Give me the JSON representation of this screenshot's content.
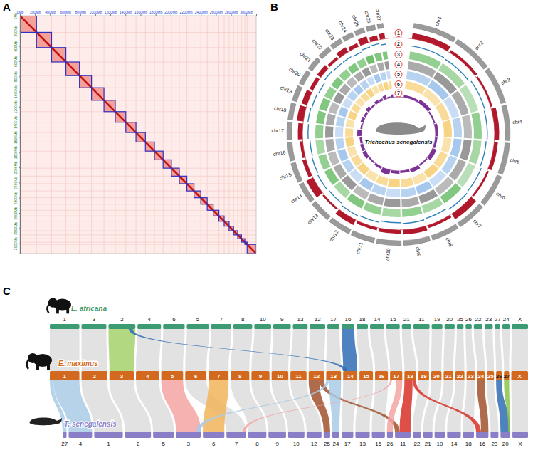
{
  "chart_data": [
    {
      "type": "heatmap",
      "label": "A",
      "color": "#e8362d",
      "xlim": [
        0,
        3135
      ],
      "ylim": [
        0,
        3135
      ],
      "xticks": [
        {
          "value": 0,
          "label": "0Mb"
        },
        {
          "value": 200,
          "label": "200Mb"
        },
        {
          "value": 400,
          "label": "400Mb"
        },
        {
          "value": 600,
          "label": "600Mb"
        },
        {
          "value": 800,
          "label": "800Mb"
        },
        {
          "value": 1000,
          "label": "1000Mb"
        },
        {
          "value": 1200,
          "label": "1200Mb"
        },
        {
          "value": 1400,
          "label": "1400Mb"
        },
        {
          "value": 1600,
          "label": "1600Mb"
        },
        {
          "value": 1800,
          "label": "1800Mb"
        },
        {
          "value": 2000,
          "label": "2000Mb"
        },
        {
          "value": 2200,
          "label": "2200Mb"
        },
        {
          "value": 2400,
          "label": "2400Mb"
        },
        {
          "value": 2600,
          "label": "2600Mb"
        },
        {
          "value": 2800,
          "label": "2800Mb"
        },
        {
          "value": 3000,
          "label": "3000Mb"
        }
      ],
      "yticks": [
        {
          "value": 0,
          "label": "0Mb"
        },
        {
          "value": 200,
          "label": "200Mb"
        },
        {
          "value": 400,
          "label": "400Mb"
        },
        {
          "value": 600,
          "label": "600Mb"
        },
        {
          "value": 800,
          "label": "800Mb"
        },
        {
          "value": 1000,
          "label": "1000Mb"
        },
        {
          "value": 1200,
          "label": "1200Mb"
        },
        {
          "value": 1400,
          "label": "1400Mb"
        },
        {
          "value": 1600,
          "label": "1600Mb"
        },
        {
          "value": 1800,
          "label": "1800Mb"
        },
        {
          "value": 2000,
          "label": "2000Mb"
        },
        {
          "value": 2200,
          "label": "2200Mb"
        },
        {
          "value": 2400,
          "label": "2400Mb"
        },
        {
          "value": 2600,
          "label": "2600Mb"
        },
        {
          "value": 2800,
          "label": "2800Mb"
        },
        {
          "value": 3000,
          "label": "3000Mb"
        }
      ],
      "values": [
        220,
        200,
        190,
        180,
        160,
        165,
        150,
        140,
        135,
        125,
        120,
        115,
        110,
        105,
        100,
        95,
        90,
        85,
        80,
        75,
        70,
        65,
        60,
        55,
        50,
        45,
        30,
        120
      ]
    },
    {
      "type": "circos",
      "label": "B",
      "title": "Trichechus senegalensis",
      "color": "#9a9a9a",
      "categories": [
        "chr1",
        "chr2",
        "chr3",
        "chr4",
        "chr5",
        "chr6",
        "chr7",
        "chr8",
        "chr9",
        "chr10",
        "chr11",
        "chr12",
        "chr13",
        "chr14",
        "chr15",
        "chr16",
        "chr17",
        "chr18",
        "chr19",
        "chr20",
        "chr21",
        "chr22",
        "chr23",
        "chr24",
        "chr25",
        "chr26",
        "chr27"
      ],
      "values": [
        220,
        200,
        190,
        180,
        160,
        165,
        150,
        140,
        135,
        125,
        120,
        115,
        110,
        105,
        100,
        95,
        90,
        85,
        80,
        75,
        70,
        65,
        60,
        55,
        50,
        45,
        30
      ],
      "tracks": [
        {
          "name": "1",
          "type": "bar",
          "color": "#b2182b",
          "ylim": [
            0,
            1
          ],
          "values": [
            0.6,
            0.3,
            0.2,
            0.5,
            0.4,
            0.2,
            0.7,
            0.3,
            0.5,
            0.4,
            0.3,
            0.6,
            0.2,
            0.8,
            0.4,
            0.3,
            0.5,
            0.7,
            0.6,
            0.4,
            0.5,
            0.3,
            0.6,
            0.4,
            0.7,
            0.5,
            0.6
          ]
        },
        {
          "name": "2",
          "type": "line",
          "color": "#2c7fb8",
          "ylim": [
            36,
            46
          ],
          "values": [
            40,
            39,
            41,
            40,
            39,
            41,
            42,
            40,
            41,
            40,
            42,
            43,
            41,
            42,
            41,
            40,
            42,
            43,
            42,
            41,
            43,
            42,
            42,
            41,
            43,
            44,
            42
          ]
        },
        {
          "name": "3",
          "type": "heat",
          "color": "#4daf4a",
          "ylim": [
            0,
            1
          ],
          "values": [
            0.6,
            0.5,
            0.4,
            0.6,
            0.5,
            0.4,
            0.7,
            0.5,
            0.6,
            0.5,
            0.6,
            0.7,
            0.5,
            0.7,
            0.6,
            0.5,
            0.6,
            0.7,
            0.7,
            0.6,
            0.7,
            0.6,
            0.7,
            0.6,
            0.8,
            0.7,
            0.7
          ]
        },
        {
          "name": "4",
          "type": "heat",
          "color": "#555555",
          "ylim": [
            0,
            1
          ],
          "values": [
            0.5,
            0.6,
            0.5,
            0.4,
            0.6,
            0.5,
            0.4,
            0.6,
            0.5,
            0.6,
            0.5,
            0.4,
            0.6,
            0.5,
            0.4,
            0.5,
            0.6,
            0.5,
            0.4,
            0.6,
            0.5,
            0.4,
            0.5,
            0.6,
            0.4,
            0.5,
            0.6
          ]
        },
        {
          "name": "5",
          "type": "heat",
          "color": "#4a90d9",
          "ylim": [
            0,
            1
          ],
          "values": [
            0.4,
            0.5,
            0.3,
            0.4,
            0.5,
            0.4,
            0.3,
            0.5,
            0.4,
            0.3,
            0.4,
            0.5,
            0.3,
            0.4,
            0.5,
            0.4,
            0.3,
            0.4,
            0.5,
            0.3,
            0.4,
            0.5,
            0.4,
            0.3,
            0.5,
            0.4,
            0.3
          ]
        },
        {
          "name": "6",
          "type": "heat",
          "color": "#f2b632",
          "ylim": [
            0,
            1
          ],
          "values": [
            0.5,
            0.4,
            0.5,
            0.6,
            0.4,
            0.5,
            0.6,
            0.4,
            0.5,
            0.6,
            0.5,
            0.4,
            0.6,
            0.5,
            0.4,
            0.6,
            0.5,
            0.4,
            0.6,
            0.5,
            0.4,
            0.5,
            0.6,
            0.4,
            0.5,
            0.6,
            0.5
          ]
        },
        {
          "name": "7",
          "type": "bar",
          "color": "#7b3294",
          "ylim": [
            0,
            1
          ],
          "values": [
            0.3,
            0.5,
            0.2,
            0.4,
            0.3,
            0.6,
            0.2,
            0.5,
            0.3,
            0.4,
            0.7,
            0.3,
            0.2,
            0.5,
            0.4,
            0.3,
            0.6,
            0.2,
            0.4,
            0.3,
            0.5,
            0.2,
            0.4,
            0.3,
            0.5,
            0.2,
            0.4
          ]
        }
      ]
    },
    {
      "type": "synteny",
      "label": "C",
      "color": "#cfcfcf",
      "genomes": [
        {
          "name": "L. africana",
          "color": "#3d9b73",
          "categories": [
            "1",
            "3",
            "2",
            "4",
            "6",
            "5",
            "7",
            "8",
            "10",
            "9",
            "13",
            "12",
            "17",
            "16",
            "18",
            "14",
            "15",
            "21",
            "11",
            "19",
            "20",
            "25",
            "26",
            "22",
            "23",
            "27",
            "24",
            "X"
          ],
          "sizes": [
            220,
            185,
            200,
            175,
            160,
            165,
            150,
            140,
            125,
            130,
            110,
            115,
            90,
            95,
            85,
            105,
            100,
            70,
            120,
            80,
            75,
            50,
            45,
            65,
            60,
            40,
            55,
            120
          ]
        },
        {
          "name": "E. maximus",
          "color": "#d2691e",
          "categories": [
            "1",
            "2",
            "3",
            "4",
            "5",
            "6",
            "7",
            "8",
            "9",
            "10",
            "11",
            "12",
            "13",
            "14",
            "15",
            "16",
            "17",
            "18",
            "19",
            "20",
            "21",
            "22",
            "23",
            "24",
            "25",
            "26",
            "27",
            "X"
          ],
          "sizes": [
            230,
            200,
            190,
            180,
            170,
            165,
            155,
            145,
            140,
            130,
            125,
            120,
            115,
            110,
            105,
            100,
            95,
            90,
            85,
            80,
            75,
            70,
            65,
            60,
            55,
            45,
            40,
            130
          ]
        },
        {
          "name": "T. senegalensis",
          "color": "#8a7fc7",
          "categories": [
            "27",
            "4",
            "1",
            "2",
            "5",
            "3",
            "6",
            "7",
            "8",
            "9",
            "10",
            "12",
            "25",
            "24",
            "17",
            "13",
            "15",
            "26",
            "11",
            "22",
            "21",
            "19",
            "14",
            "18",
            "16",
            "23",
            "20",
            "X"
          ],
          "sizes": [
            30,
            180,
            220,
            200,
            160,
            190,
            165,
            150,
            140,
            135,
            125,
            115,
            50,
            55,
            90,
            110,
            100,
            45,
            120,
            65,
            70,
            80,
            105,
            85,
            95,
            60,
            75,
            120
          ]
        }
      ],
      "links": [
        [
          {
            "from": "1",
            "to": "1"
          },
          {
            "from": "3",
            "to": "2"
          },
          {
            "from": "2",
            "to": "3",
            "color": "#a5d16b"
          },
          {
            "from": "4",
            "to": "4"
          },
          {
            "from": "6",
            "to": "5"
          },
          {
            "from": "5",
            "to": "6"
          },
          {
            "from": "7",
            "to": "7"
          },
          {
            "from": "8",
            "to": "8"
          },
          {
            "from": "10",
            "to": "9"
          },
          {
            "from": "9",
            "to": "10"
          },
          {
            "from": "13",
            "to": "11"
          },
          {
            "from": "12",
            "to": "12"
          },
          {
            "from": "17",
            "to": "13"
          },
          {
            "from": "16",
            "to": "14",
            "color": "#2f6db5"
          },
          {
            "from": "18",
            "to": "15"
          },
          {
            "from": "14",
            "to": "16"
          },
          {
            "from": "15",
            "to": "17"
          },
          {
            "from": "21",
            "to": "18"
          },
          {
            "from": "11",
            "to": "19"
          },
          {
            "from": "19",
            "to": "20"
          },
          {
            "from": "20",
            "to": "21"
          },
          {
            "from": "25",
            "to": "22"
          },
          {
            "from": "26",
            "to": "23"
          },
          {
            "from": "22",
            "to": "24"
          },
          {
            "from": "23",
            "to": "25"
          },
          {
            "from": "27",
            "to": "26"
          },
          {
            "from": "24",
            "to": "27"
          },
          {
            "from": "X",
            "to": "X"
          },
          {
            "from": "2",
            "to": "14",
            "color": "#2f6db5",
            "from_part": [
              0.75,
              0.9
            ],
            "to_part": [
              0,
              0.3
            ]
          }
        ],
        [
          {
            "from": "1",
            "to": "27",
            "color": "#a9cbe6",
            "from_part": [
              0,
              0.12
            ]
          },
          {
            "from": "1",
            "to": "4",
            "color": "#a9cbe6",
            "from_part": [
              0.12,
              1
            ]
          },
          {
            "from": "2",
            "to": "1"
          },
          {
            "from": "3",
            "to": "2"
          },
          {
            "from": "4",
            "to": "5"
          },
          {
            "from": "5",
            "to": "3",
            "color": "#f4a3a3"
          },
          {
            "from": "6",
            "to": "7"
          },
          {
            "from": "7",
            "to": "6",
            "color": "#f0b45a"
          },
          {
            "from": "8",
            "to": "8"
          },
          {
            "from": "9",
            "to": "9"
          },
          {
            "from": "10",
            "to": "10"
          },
          {
            "from": "11",
            "to": "12"
          },
          {
            "from": "12",
            "to": "25",
            "color": "#a0522d",
            "from_part": [
              0,
              0.7
            ]
          },
          {
            "from": "12",
            "to": "11",
            "color": "#a0522d",
            "from_part": [
              0.7,
              1
            ],
            "to_part": [
              0,
              0.3
            ]
          },
          {
            "from": "13",
            "to": "24",
            "color": "#a9cbe6",
            "from_part": [
              0.2,
              1
            ]
          },
          {
            "from": "13",
            "to": "3",
            "color": "#a9cbe6",
            "from_part": [
              0,
              0.2
            ],
            "to_part": [
              0.8,
              1
            ]
          },
          {
            "from": "14",
            "to": "17"
          },
          {
            "from": "15",
            "to": "13"
          },
          {
            "from": "16",
            "to": "15"
          },
          {
            "from": "17",
            "to": "26",
            "color": "#f4a3a3",
            "from_part": [
              0.5,
              1
            ]
          },
          {
            "from": "17",
            "to": "7",
            "color": "#f4a3a3",
            "from_part": [
              0,
              0.15
            ],
            "to_part": [
              0.85,
              1
            ]
          },
          {
            "from": "18",
            "to": "11",
            "color": "#d73027",
            "from_part": [
              0,
              0.7
            ],
            "to_part": [
              0.3,
              1
            ]
          },
          {
            "from": "18",
            "to": "16",
            "color": "#d73027",
            "from_part": [
              0.7,
              1
            ],
            "to_part": [
              0,
              0.4
            ]
          },
          {
            "from": "19",
            "to": "22"
          },
          {
            "from": "20",
            "to": "21"
          },
          {
            "from": "21",
            "to": "19"
          },
          {
            "from": "22",
            "to": "14"
          },
          {
            "from": "23",
            "to": "18"
          },
          {
            "from": "24",
            "to": "16",
            "color": "#a0522d",
            "to_part": [
              0.4,
              1
            ]
          },
          {
            "from": "25",
            "to": "23"
          },
          {
            "from": "26",
            "to": "20",
            "color": "#2f6db5"
          },
          {
            "from": "27",
            "to": "20",
            "color": "#8bc34a",
            "to_part": [
              0.8,
              1
            ]
          },
          {
            "from": "X",
            "to": "X"
          }
        ]
      ]
    }
  ]
}
